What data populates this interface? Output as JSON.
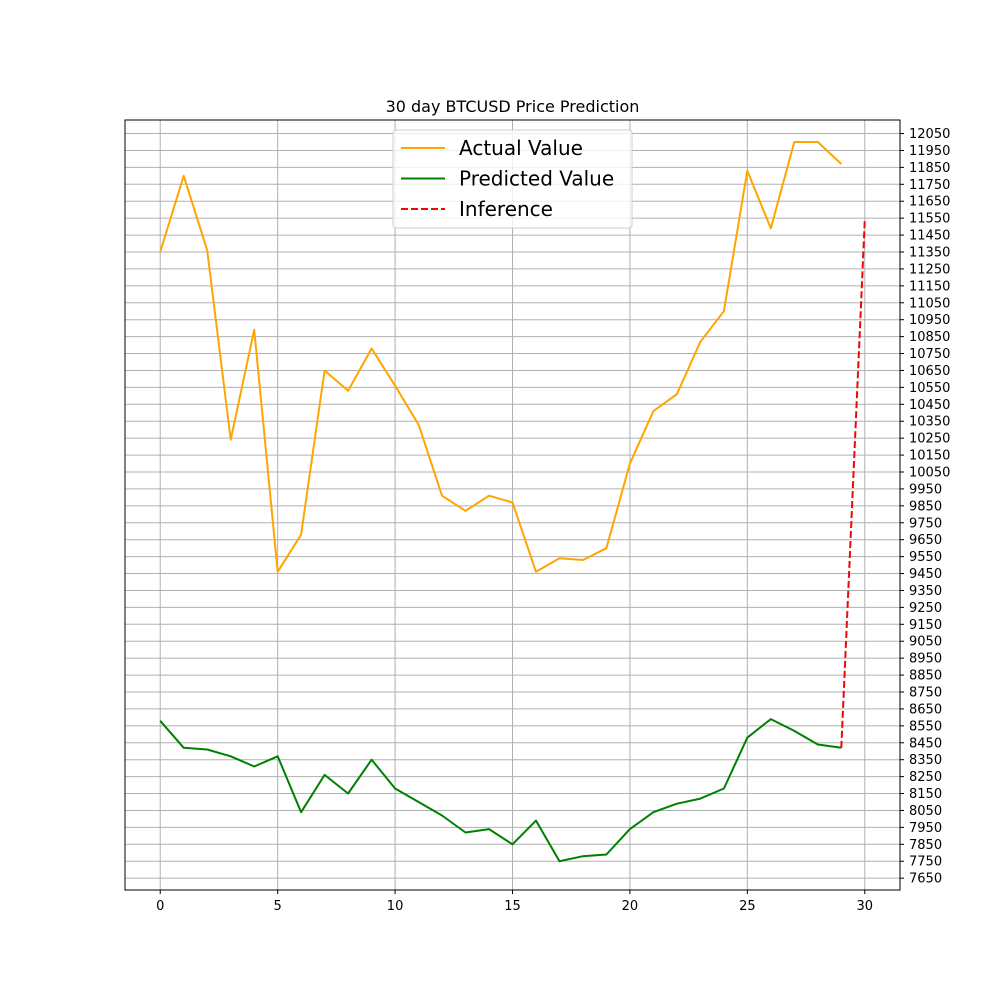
{
  "chart_data": {
    "type": "line",
    "title": "30 day BTCUSD Price Prediction",
    "xlabel": "",
    "ylabel": "",
    "xlim": [
      -1.5,
      31.5
    ],
    "ylim": [
      7580,
      12130
    ],
    "x_ticks": [
      0,
      5,
      10,
      15,
      20,
      25,
      30
    ],
    "y_ticks": [
      7650,
      7750,
      7850,
      7950,
      8050,
      8150,
      8250,
      8350,
      8450,
      8550,
      8650,
      8750,
      8850,
      8950,
      9050,
      9150,
      9250,
      9350,
      9450,
      9550,
      9650,
      9750,
      9850,
      9950,
      10050,
      10150,
      10250,
      10350,
      10450,
      10550,
      10650,
      10750,
      10850,
      10950,
      11050,
      11150,
      11250,
      11350,
      11450,
      11550,
      11650,
      11750,
      11850,
      11950,
      12050
    ],
    "y_axis_side": "right",
    "grid": true,
    "legend_position": "upper-center",
    "series": [
      {
        "name": "Actual Value",
        "color": "#ffa500",
        "style": "solid",
        "x": [
          0,
          1,
          2,
          3,
          4,
          5,
          6,
          7,
          8,
          9,
          10,
          11,
          12,
          13,
          14,
          15,
          16,
          17,
          18,
          19,
          20,
          21,
          22,
          23,
          24,
          25,
          26,
          27,
          28,
          29
        ],
        "values": [
          11350,
          11800,
          11360,
          10240,
          10890,
          9460,
          9680,
          10650,
          10530,
          10780,
          10560,
          10330,
          9910,
          9820,
          9910,
          9870,
          9460,
          9540,
          9530,
          9600,
          10100,
          10410,
          10510,
          10820,
          11000,
          11830,
          11490,
          12000,
          12000,
          11870
        ]
      },
      {
        "name": "Predicted Value",
        "color": "#008000",
        "style": "solid",
        "x": [
          0,
          1,
          2,
          3,
          4,
          5,
          6,
          7,
          8,
          9,
          10,
          11,
          12,
          13,
          14,
          15,
          16,
          17,
          18,
          19,
          20,
          21,
          22,
          23,
          24,
          25,
          26,
          27,
          28,
          29
        ],
        "values": [
          8580,
          8420,
          8410,
          8370,
          8310,
          8370,
          8040,
          8260,
          8150,
          8350,
          8180,
          8100,
          8020,
          7920,
          7940,
          7850,
          7990,
          7750,
          7780,
          7790,
          7940,
          8040,
          8090,
          8120,
          8180,
          8480,
          8590,
          8520,
          8440,
          8420
        ]
      },
      {
        "name": "Inference",
        "color": "#ff0000",
        "style": "dashed",
        "x": [
          29,
          30
        ],
        "values": [
          8420,
          11540
        ]
      }
    ]
  }
}
